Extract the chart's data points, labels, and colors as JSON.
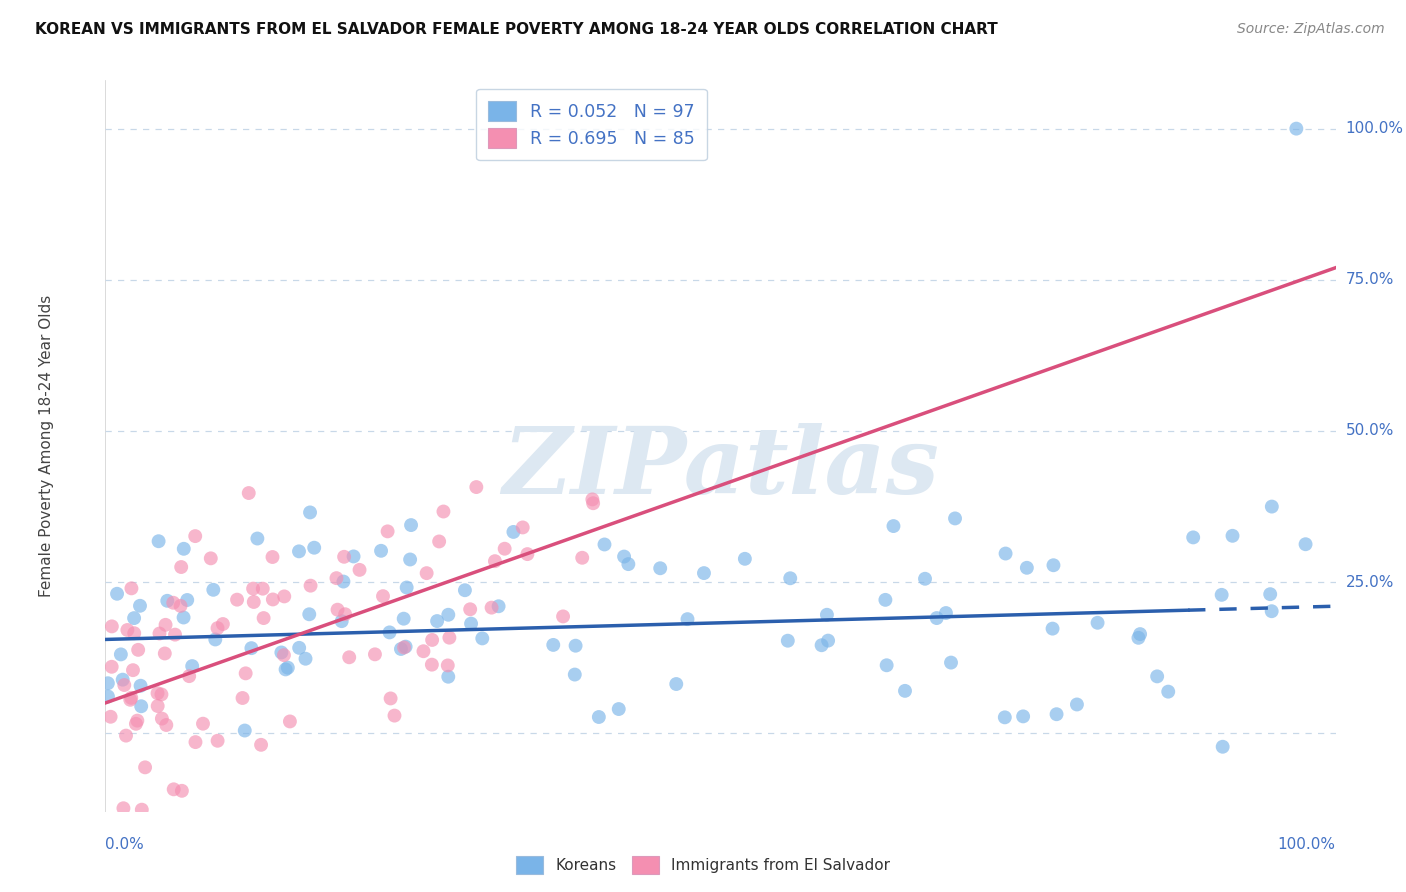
{
  "title": "KOREAN VS IMMIGRANTS FROM EL SALVADOR FEMALE POVERTY AMONG 18-24 YEAR OLDS CORRELATION CHART",
  "source": "Source: ZipAtlas.com",
  "ylabel": "Female Poverty Among 18-24 Year Olds",
  "xlim": [
    0.0,
    1.0
  ],
  "ylim": [
    -0.13,
    1.08
  ],
  "ytick_positions": [
    0.0,
    0.25,
    0.5,
    0.75,
    1.0
  ],
  "ytick_labels": [
    "",
    "25.0%",
    "50.0%",
    "75.0%",
    "100.0%"
  ],
  "xtick_label_left": "0.0%",
  "xtick_label_right": "100.0%",
  "korean_scatter_color": "#7ab4e8",
  "salvador_scatter_color": "#f48fb1",
  "korean_line_color": "#2b5fad",
  "salvador_line_color": "#d94f7c",
  "grid_color": "#c8d8e8",
  "watermark_text": "ZIPatlas",
  "watermark_color": "#dde8f2",
  "background_color": "#ffffff",
  "title_color": "#111111",
  "source_color": "#888888",
  "tick_label_color": "#4472c4",
  "legend_text_color": "#4472c4",
  "R_korean": 0.052,
  "N_korean": 97,
  "R_salvador": 0.695,
  "N_salvador": 85,
  "legend1_label": "R = 0.052   N = 97",
  "legend2_label": "R = 0.695   N = 85",
  "bottom_legend1": "Koreans",
  "bottom_legend2": "Immigrants from El Salvador",
  "korean_line_intercept": 0.155,
  "korean_line_slope": 0.055,
  "salvador_line_intercept": 0.05,
  "salvador_line_slope": 0.72
}
